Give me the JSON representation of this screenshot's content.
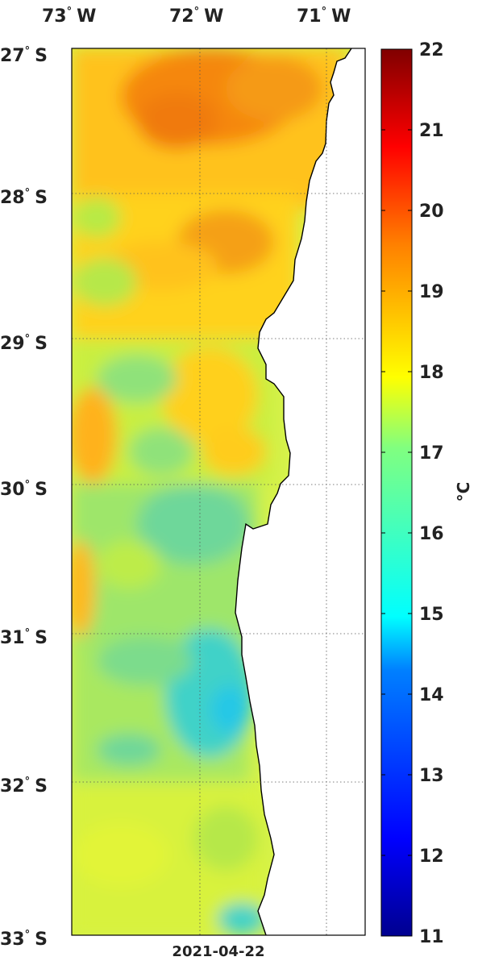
{
  "map": {
    "date": "2021-04-22",
    "lon_labels": [
      {
        "deg": "73",
        "hemi": "W"
      },
      {
        "deg": "72",
        "hemi": "W"
      },
      {
        "deg": "71",
        "hemi": "W"
      }
    ],
    "lat_labels": [
      {
        "deg": "27",
        "hemi": "S"
      },
      {
        "deg": "28",
        "hemi": "S"
      },
      {
        "deg": "29",
        "hemi": "S"
      },
      {
        "deg": "30",
        "hemi": "S"
      },
      {
        "deg": "31",
        "hemi": "S"
      },
      {
        "deg": "32",
        "hemi": "S"
      },
      {
        "deg": "33",
        "hemi": "S"
      }
    ],
    "degree_symbol": "°"
  },
  "colorbar": {
    "unit_label": "°C",
    "range": [
      11,
      22
    ],
    "ticks": [
      "22",
      "21",
      "20",
      "19",
      "18",
      "17",
      "16",
      "15",
      "14",
      "13",
      "12",
      "11"
    ],
    "colors": [
      "#00008f",
      "#0000ff",
      "#0080ff",
      "#00ffff",
      "#80ff80",
      "#ffff00",
      "#ff8000",
      "#ff0000",
      "#800000"
    ]
  }
}
